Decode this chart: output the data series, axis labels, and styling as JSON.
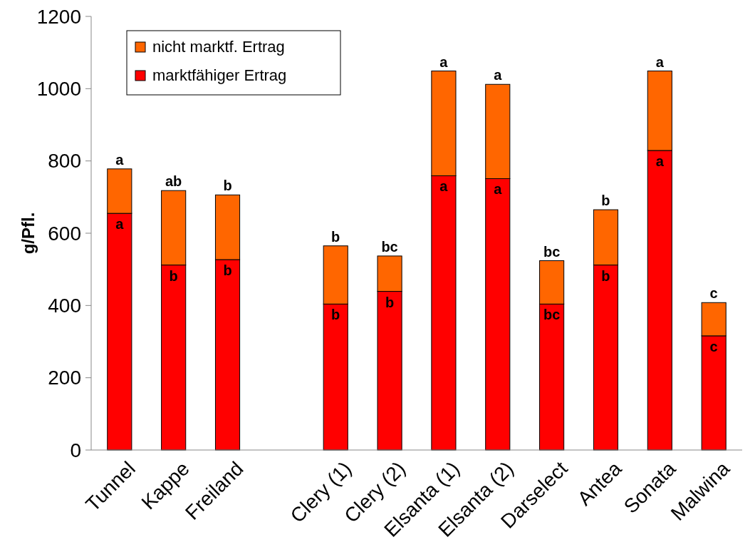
{
  "chart_data": {
    "type": "bar",
    "stacked": true,
    "ylabel": "g/Pfl.",
    "categories": [
      "Tunnel",
      "Kappe",
      "Freiland",
      null,
      "Clery (1)",
      "Clery (2)",
      "Elsanta (1)",
      "Elsanta (2)",
      "Darselect",
      "Antea",
      "Sonata",
      "Malwina"
    ],
    "series": [
      {
        "name": "marktfähiger Ertrag",
        "color": "#ff0000",
        "values": [
          655,
          512,
          527,
          null,
          404,
          439,
          759,
          751,
          404,
          512,
          829,
          316
        ]
      },
      {
        "name": "nicht marktf. Ertrag",
        "color": "#ff6600",
        "values": [
          123,
          206,
          179,
          null,
          161,
          98,
          290,
          261,
          120,
          153,
          220,
          92
        ]
      }
    ],
    "ylim": [
      0,
      1200
    ],
    "yticks": [
      0,
      200,
      400,
      600,
      800,
      1000,
      1200
    ],
    "legend": "top left",
    "annotations": [
      {
        "text": "a",
        "x": "Tunnel",
        "y": 778
      },
      {
        "text": "a",
        "x": "Tunnel",
        "y": 655
      },
      {
        "text": "ab",
        "x": "Kappe",
        "y": 718
      },
      {
        "text": "b",
        "x": "Kappe",
        "y": 512
      },
      {
        "text": "b",
        "x": "Freiland",
        "y": 706
      },
      {
        "text": "b",
        "x": "Freiland",
        "y": 527
      },
      {
        "text": "b",
        "x": "Clery (1)",
        "y": 565
      },
      {
        "text": "b",
        "x": "Clery (1)",
        "y": 404
      },
      {
        "text": "bc",
        "x": "Clery (2)",
        "y": 537
      },
      {
        "text": "b",
        "x": "Clery (2)",
        "y": 439
      },
      {
        "text": "a",
        "x": "Elsanta (1)",
        "y": 1049
      },
      {
        "text": "a",
        "x": "Elsanta (1)",
        "y": 759
      },
      {
        "text": "a",
        "x": "Elsanta (2)",
        "y": 1012
      },
      {
        "text": "a",
        "x": "Elsanta (2)",
        "y": 751
      },
      {
        "text": "bc",
        "x": "Darselect",
        "y": 524
      },
      {
        "text": "bc",
        "x": "Darselect",
        "y": 404
      },
      {
        "text": "b",
        "x": "Antea",
        "y": 665
      },
      {
        "text": "b",
        "x": "Antea",
        "y": 512
      },
      {
        "text": "a",
        "x": "Sonata",
        "y": 1049
      },
      {
        "text": "a",
        "x": "Sonata",
        "y": 829
      },
      {
        "text": "c",
        "x": "Malwina",
        "y": 408
      },
      {
        "text": "c",
        "x": "Malwina",
        "y": 316
      }
    ]
  }
}
